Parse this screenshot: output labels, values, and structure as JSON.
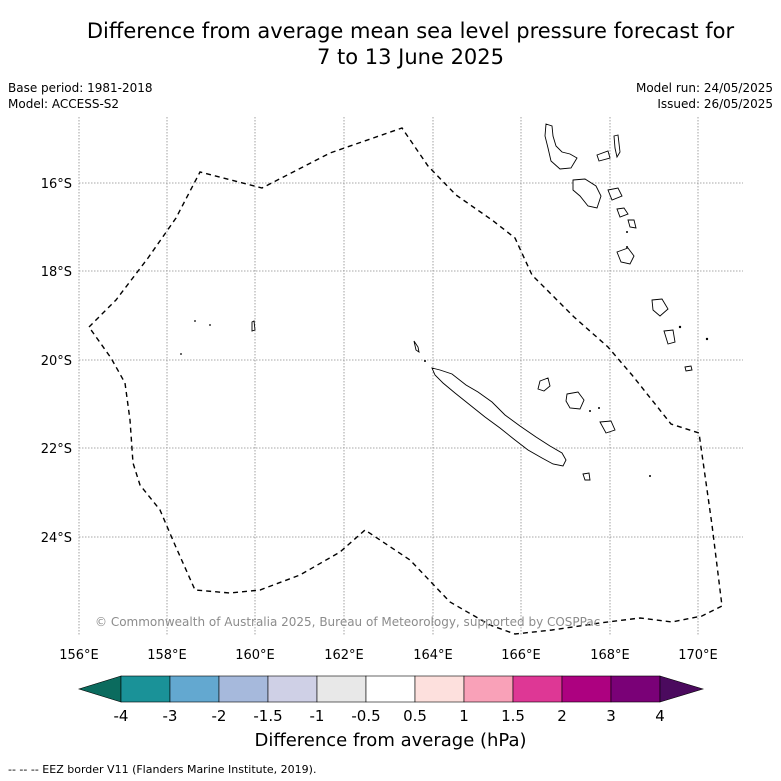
{
  "title": {
    "line1": "Difference from average mean sea level pressure forecast for",
    "line2": "7 to 13 June 2025"
  },
  "meta": {
    "base_period": "Base period: 1981-2018",
    "model": "Model: ACCESS-S2",
    "model_run": "Model run: 24/05/2025",
    "issued": "Issued: 26/05/2025"
  },
  "map": {
    "lon_labels": [
      "156°E",
      "158°E",
      "160°E",
      "162°E",
      "164°E",
      "166°E",
      "168°E",
      "170°E"
    ],
    "lat_labels": [
      "16°S",
      "18°S",
      "20°S",
      "22°S",
      "24°S"
    ],
    "copyright": "© Commonwealth of Australia 2025, Bureau of Meteorology, supported by COSPPac",
    "grid": true,
    "region": "New Caledonia EEZ"
  },
  "colorbar": {
    "label": "Difference from average (hPa)",
    "ticks": [
      "-4",
      "-3",
      "-2",
      "-1.5",
      "-1",
      "-0.5",
      "0.5",
      "1",
      "1.5",
      "2",
      "3",
      "4"
    ],
    "under_color": "#0b6b5e",
    "over_color": "#4b0a5e",
    "colors": [
      "#1a9298",
      "#63a8d0",
      "#a6b9dc",
      "#cfd0e6",
      "#e8e8e8",
      "#ffffff",
      "#fde0dd",
      "#f9a1b8",
      "#de3795",
      "#ad0180",
      "#7a0177"
    ]
  },
  "footer": {
    "legend_text": "--  --  -- EEZ border V11 (Flanders Marine Institute, 2019)."
  }
}
